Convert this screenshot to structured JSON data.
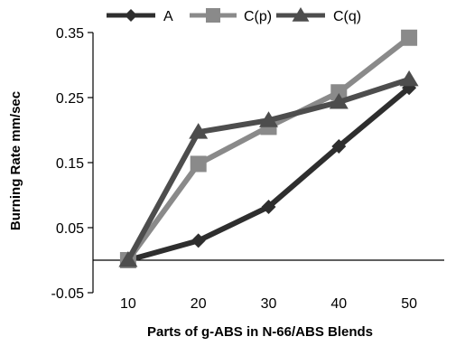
{
  "chart_data": {
    "type": "line",
    "title": "",
    "xlabel": "Parts of g-ABS in N-66/ABS Blends",
    "ylabel": "Burning Rate  mm/sec",
    "categories": [
      "10",
      "20",
      "30",
      "40",
      "50"
    ],
    "x": [
      10,
      20,
      30,
      40,
      50
    ],
    "ylim": [
      -0.05,
      0.35
    ],
    "yticks": [
      -0.05,
      0.05,
      0.15,
      0.25,
      0.35
    ],
    "ytick_labels": [
      "-0.05",
      "0.05",
      "0.15",
      "0.25",
      "0.35"
    ],
    "grid": false,
    "legend_position": "top",
    "series": [
      {
        "name": "A",
        "marker": "diamond",
        "color": "#2e2e2e",
        "values": [
          0.0,
          0.03,
          0.082,
          0.175,
          0.265
        ]
      },
      {
        "name": "C(p)",
        "marker": "square",
        "color": "#8a8a8a",
        "values": [
          0.0,
          0.148,
          0.205,
          0.258,
          0.342
        ]
      },
      {
        "name": "C(q)",
        "marker": "triangle",
        "color": "#4d4d4d",
        "values": [
          0.0,
          0.197,
          0.215,
          0.243,
          0.278
        ]
      }
    ]
  }
}
